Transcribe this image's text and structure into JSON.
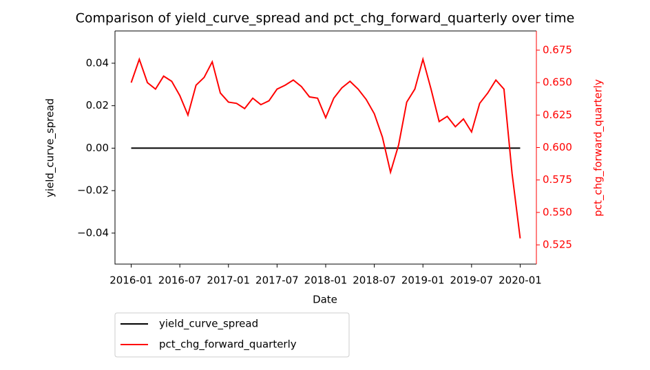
{
  "chart_data": {
    "type": "line",
    "title": "Comparison of yield_curve_spread and pct_chg_forward_quarterly over time",
    "x_label": "Date",
    "y_label": "yield_curve_spread",
    "y2_label": "pct_chg_forward_quarterly",
    "y2_color": "#ff0000",
    "x": [
      "2016-01",
      "2016-02",
      "2016-03",
      "2016-04",
      "2016-05",
      "2016-06",
      "2016-07",
      "2016-08",
      "2016-09",
      "2016-10",
      "2016-11",
      "2016-12",
      "2017-01",
      "2017-02",
      "2017-03",
      "2017-04",
      "2017-05",
      "2017-06",
      "2017-07",
      "2017-08",
      "2017-09",
      "2017-10",
      "2017-11",
      "2017-12",
      "2018-01",
      "2018-02",
      "2018-03",
      "2018-04",
      "2018-05",
      "2018-06",
      "2018-07",
      "2018-08",
      "2018-09",
      "2018-10",
      "2018-11",
      "2018-12",
      "2019-01",
      "2019-02",
      "2019-03",
      "2019-04",
      "2019-05",
      "2019-06",
      "2019-07",
      "2019-08",
      "2019-09",
      "2019-10",
      "2019-11",
      "2019-12",
      "2020-01"
    ],
    "xlim": [
      "2015-11",
      "2020-03"
    ],
    "xticks": [
      "2016-01",
      "2016-07",
      "2017-01",
      "2017-07",
      "2018-01",
      "2018-07",
      "2019-01",
      "2019-07",
      "2020-01"
    ],
    "ylim": [
      -0.0546,
      0.0552
    ],
    "yticks": [
      {
        "value": -0.04,
        "label": "−0.04"
      },
      {
        "value": -0.02,
        "label": "−0.02"
      },
      {
        "value": 0,
        "label": "0.00"
      },
      0.02,
      0.04
    ],
    "y2lim": [
      0.5102,
      0.6898
    ],
    "y2ticks": [
      0.525,
      {
        "value": 0.55,
        "label": "0.550"
      },
      0.575,
      {
        "value": 0.6,
        "label": "0.600"
      },
      0.625,
      {
        "value": 0.65,
        "label": "0.650"
      },
      0.675
    ],
    "series": [
      {
        "name": "yield_curve_spread",
        "color": "#000000",
        "values": [
          0,
          0,
          0,
          0,
          0,
          0,
          0,
          0,
          0,
          0,
          0,
          0,
          0,
          0,
          0,
          0,
          0,
          0,
          0,
          0,
          0,
          0,
          0,
          0,
          0,
          0,
          0,
          0,
          0,
          0,
          0,
          0,
          0,
          0,
          0,
          0,
          0,
          0,
          0,
          0,
          0,
          0,
          0,
          0,
          0,
          0,
          0,
          0,
          0
        ]
      },
      {
        "name": "pct_chg_forward_quarterly",
        "color": "#ff0000",
        "axis": "y2",
        "values": [
          0.65,
          0.668,
          0.65,
          0.645,
          0.655,
          0.651,
          0.64,
          0.625,
          0.648,
          0.654,
          0.666,
          0.642,
          0.635,
          0.634,
          0.63,
          0.638,
          0.633,
          0.636,
          0.645,
          0.648,
          0.652,
          0.647,
          0.639,
          0.638,
          0.623,
          0.638,
          0.646,
          0.651,
          0.645,
          0.637,
          0.626,
          0.608,
          0.581,
          0.602,
          0.635,
          0.645,
          0.668,
          0.645,
          0.62,
          0.624,
          0.616,
          0.622,
          0.612,
          0.634,
          0.642,
          0.652,
          0.645,
          0.58,
          0.53
        ]
      }
    ]
  }
}
